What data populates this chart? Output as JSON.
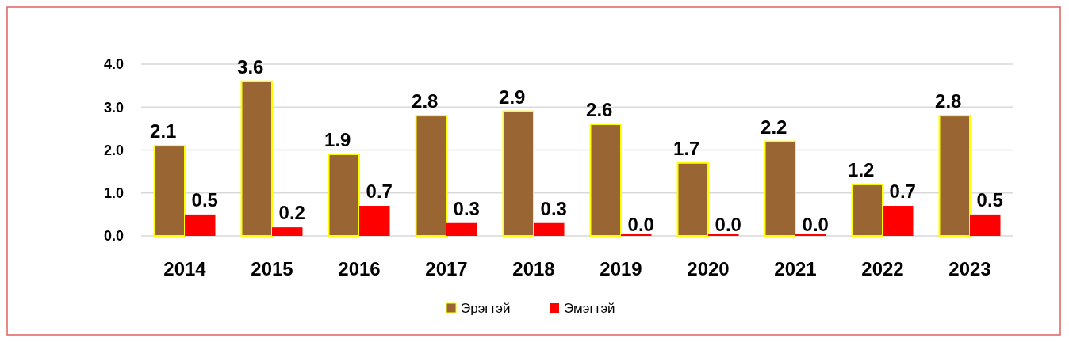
{
  "chart_data": {
    "type": "bar",
    "categories": [
      "2014",
      "2015",
      "2016",
      "2017",
      "2018",
      "2019",
      "2020",
      "2021",
      "2022",
      "2023"
    ],
    "series": [
      {
        "name": "Эрэгтэй",
        "color": "#996633",
        "values": [
          2.1,
          3.6,
          1.9,
          2.8,
          2.9,
          2.6,
          1.7,
          2.2,
          1.2,
          2.8
        ],
        "value_labels": [
          "2.1",
          "3.6",
          "1.9",
          "2.8",
          "2.9",
          "2.6",
          "1.7",
          "2.2",
          "1.2",
          "2.8"
        ]
      },
      {
        "name": "Эмэгтэй",
        "color": "#ff0000",
        "values": [
          0.5,
          0.2,
          0.7,
          0.3,
          0.3,
          0,
          0,
          0,
          0.7,
          0.5
        ],
        "value_labels": [
          "0.5",
          "0.2",
          "0.7",
          "0.3",
          "0.3",
          "0.0",
          "0.0",
          "0.0",
          "0.7",
          "0.5"
        ]
      }
    ],
    "ylim": [
      0,
      4
    ],
    "yticks": [
      {
        "value": 0,
        "label": "0.0"
      },
      {
        "value": 1,
        "label": "1.0"
      },
      {
        "value": 2,
        "label": "2.0"
      },
      {
        "value": 3,
        "label": "3.0"
      },
      {
        "value": 4,
        "label": "4.0"
      }
    ],
    "grid": "y",
    "legend": "bottom"
  }
}
